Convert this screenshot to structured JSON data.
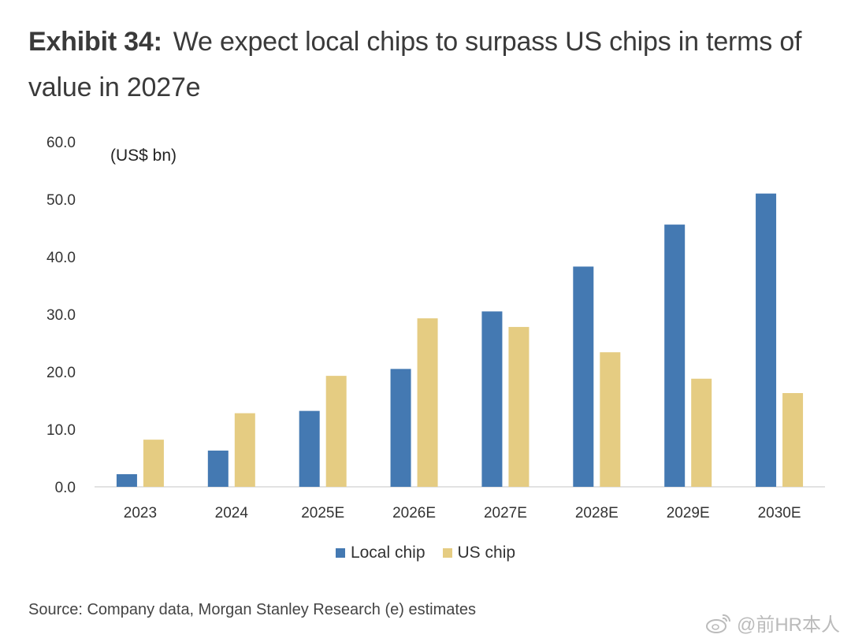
{
  "header": {
    "exhibit_label": "Exhibit 34:",
    "title": "We expect local chips to surpass US chips in terms of value in 2027e"
  },
  "chart_data": {
    "type": "bar",
    "unit_label": "(US$ bn)",
    "categories": [
      "2023",
      "2024",
      "2025E",
      "2026E",
      "2027E",
      "2028E",
      "2029E",
      "2030E"
    ],
    "series": [
      {
        "name": "Local chip",
        "color": "#4479b2",
        "values": [
          2.2,
          6.3,
          13.2,
          20.5,
          30.5,
          38.3,
          45.6,
          51.0
        ]
      },
      {
        "name": "US chip",
        "color": "#e5cc82",
        "values": [
          8.2,
          12.8,
          19.3,
          29.3,
          27.8,
          23.4,
          18.8,
          16.3
        ]
      }
    ],
    "yticks": [
      "0.0",
      "10.0",
      "20.0",
      "30.0",
      "40.0",
      "50.0",
      "60.0"
    ],
    "ylim": [
      0,
      60
    ],
    "grid": false,
    "legend_position": "bottom-center"
  },
  "footer": {
    "source": "Source: Company data, Morgan Stanley Research (e) estimates",
    "watermark": "@前HR本人"
  }
}
